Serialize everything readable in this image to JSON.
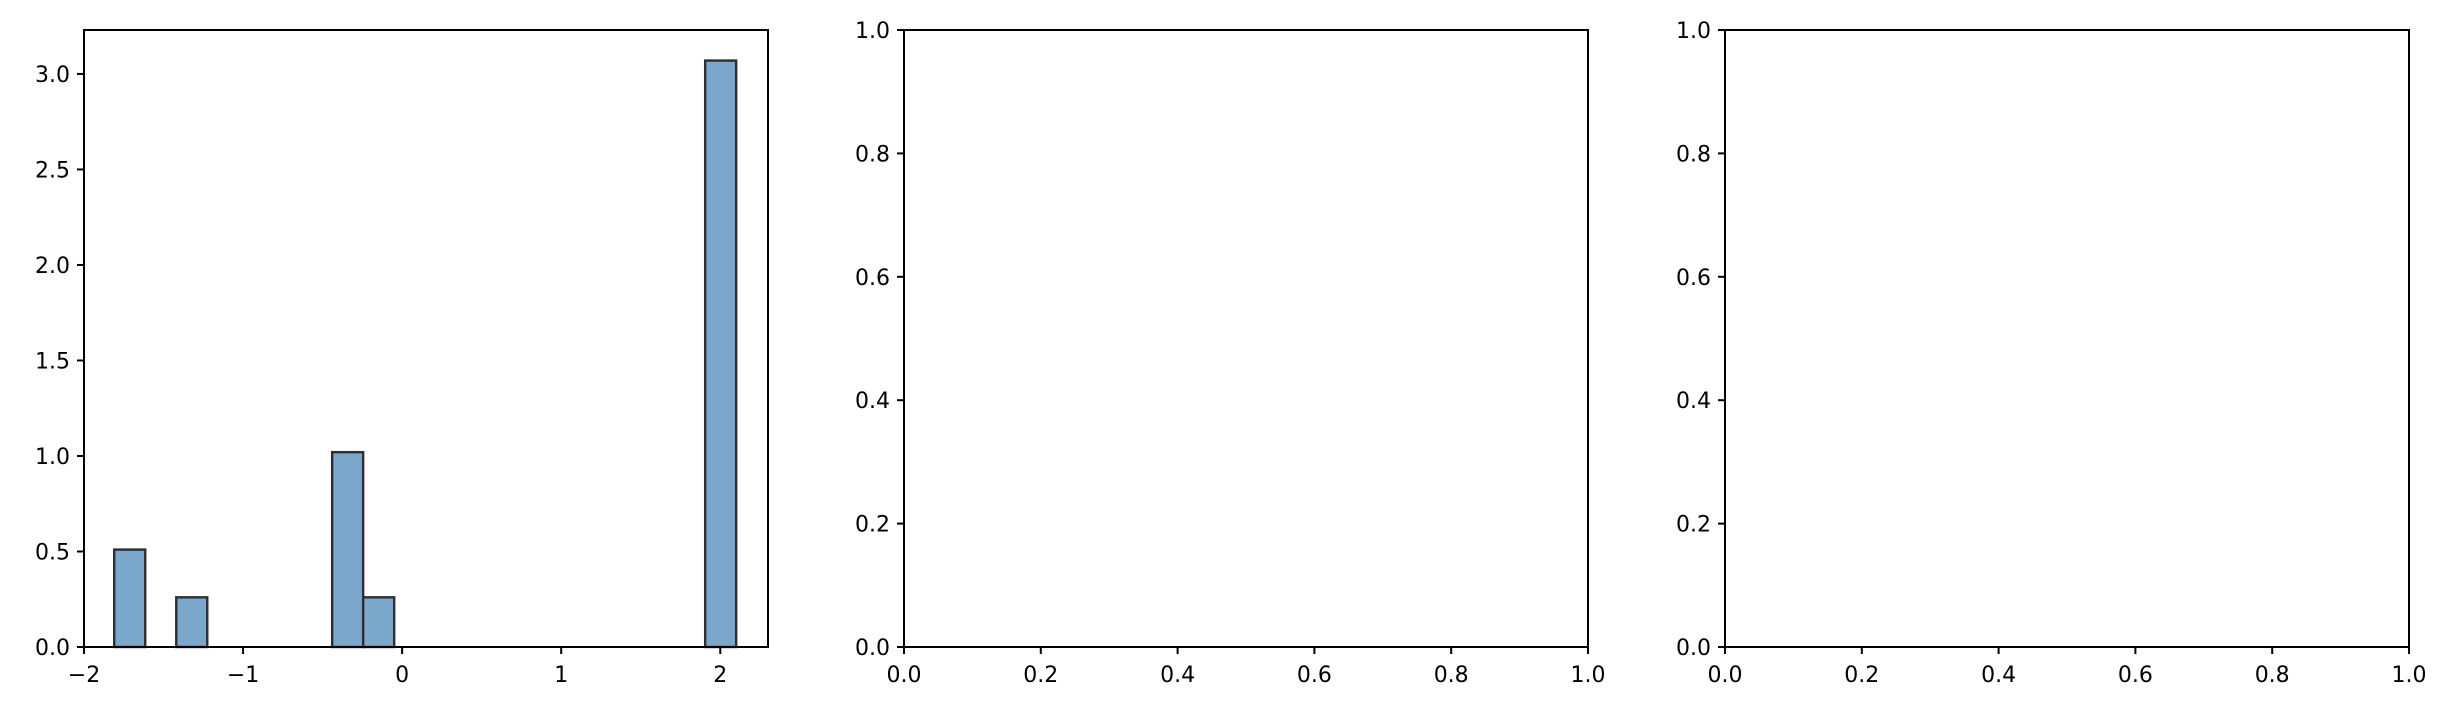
{
  "chart_data": [
    {
      "type": "bar",
      "subtype": "histogram",
      "title": "",
      "xlabel": "",
      "ylabel": "",
      "xlim": [
        -2.0,
        2.3
      ],
      "ylim": [
        0,
        3.23
      ],
      "x_ticks": [
        -2,
        -1,
        0,
        1,
        2
      ],
      "x_tick_labels": [
        "−2",
        "−1",
        "0",
        "1",
        "2"
      ],
      "y_ticks": [
        0,
        0.5,
        1,
        1.5,
        2,
        2.5,
        3
      ],
      "y_tick_labels": [
        "0.0",
        "0.5",
        "1.0",
        "1.5",
        "2.0",
        "2.5",
        "3.0"
      ],
      "bin_width": 0.195,
      "bars": [
        {
          "x_left": -1.81,
          "value": 0.51
        },
        {
          "x_left": -1.42,
          "value": 0.26
        },
        {
          "x_left": -0.44,
          "value": 1.02
        },
        {
          "x_left": -0.245,
          "value": 0.26
        },
        {
          "x_left": 1.905,
          "value": 3.07
        }
      ],
      "bar_color": "#7ba7cc",
      "edge_color": "#2e2e2e",
      "grid": false
    },
    {
      "type": "bar",
      "title": "",
      "xlabel": "",
      "ylabel": "",
      "xlim": [
        0,
        1
      ],
      "ylim": [
        0,
        1
      ],
      "x_ticks": [
        0,
        0.2,
        0.4,
        0.6,
        0.8,
        1.0
      ],
      "x_tick_labels": [
        "0.0",
        "0.2",
        "0.4",
        "0.6",
        "0.8",
        "1.0"
      ],
      "y_ticks": [
        0,
        0.2,
        0.4,
        0.6,
        0.8,
        1.0
      ],
      "y_tick_labels": [
        "0.0",
        "0.2",
        "0.4",
        "0.6",
        "0.8",
        "1.0"
      ],
      "bars": [],
      "grid": false
    },
    {
      "type": "bar",
      "title": "",
      "xlabel": "",
      "ylabel": "",
      "xlim": [
        0,
        1
      ],
      "ylim": [
        0,
        1
      ],
      "x_ticks": [
        0,
        0.2,
        0.4,
        0.6,
        0.8,
        1.0
      ],
      "x_tick_labels": [
        "0.0",
        "0.2",
        "0.4",
        "0.6",
        "0.8",
        "1.0"
      ],
      "y_ticks": [
        0,
        0.2,
        0.4,
        0.6,
        0.8,
        1.0
      ],
      "y_tick_labels": [
        "0.0",
        "0.2",
        "0.4",
        "0.6",
        "0.8",
        "1.0"
      ],
      "bars": [],
      "grid": false
    }
  ]
}
